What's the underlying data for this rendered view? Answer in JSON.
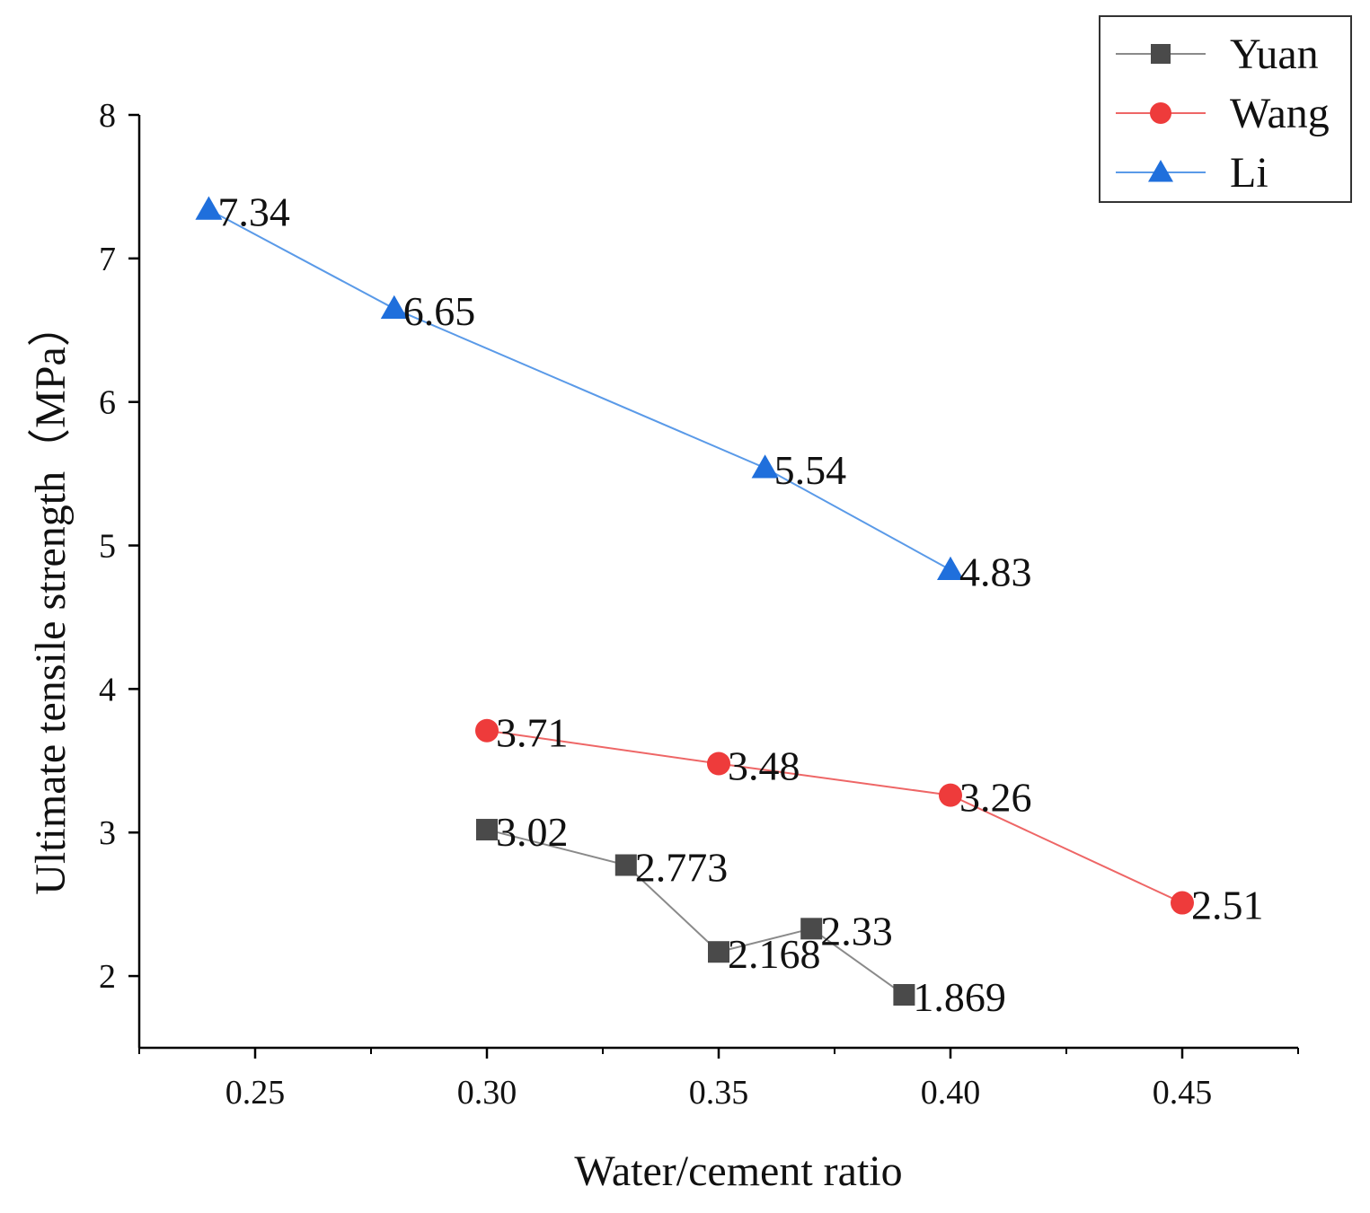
{
  "chart_data": {
    "type": "line",
    "title": "",
    "xlabel": "Water/cement ratio",
    "ylabel": "Ultimate tensile strength（MPa）",
    "xlim": [
      0.225,
      0.475
    ],
    "ylim": [
      1.5,
      8
    ],
    "x_ticks": [
      "0.25",
      "0.30",
      "0.35",
      "0.40",
      "0.45"
    ],
    "x_tick_values": [
      0.25,
      0.3,
      0.35,
      0.4,
      0.45
    ],
    "y_ticks": [
      "2",
      "3",
      "4",
      "5",
      "6",
      "7",
      "8"
    ],
    "y_tick_values": [
      2,
      3,
      4,
      5,
      6,
      7,
      8
    ],
    "grid": false,
    "legend_position": "top-right",
    "series": [
      {
        "name": "Yuan",
        "marker": "square",
        "color": "#4a4a4a",
        "line_color": "#8a8a8a",
        "x": [
          0.3,
          0.33,
          0.35,
          0.37,
          0.39
        ],
        "y": [
          3.02,
          2.773,
          2.168,
          2.33,
          1.869
        ],
        "labels": [
          "3.02",
          "2.773",
          "2.168",
          "2.33",
          "1.869"
        ]
      },
      {
        "name": "Wang",
        "marker": "circle",
        "color": "#ee3b3b",
        "line_color": "#ee6666",
        "x": [
          0.3,
          0.35,
          0.4,
          0.45
        ],
        "y": [
          3.71,
          3.48,
          3.26,
          2.51
        ],
        "labels": [
          "3.71",
          "3.48",
          "3.26",
          "2.51"
        ]
      },
      {
        "name": "Li",
        "marker": "triangle",
        "color": "#1f6fdc",
        "line_color": "#5a9ae8",
        "x": [
          0.24,
          0.28,
          0.36,
          0.4
        ],
        "y": [
          7.34,
          6.65,
          5.54,
          4.83
        ],
        "labels": [
          "7.34",
          "6.65",
          "5.54",
          "4.83"
        ]
      }
    ]
  }
}
